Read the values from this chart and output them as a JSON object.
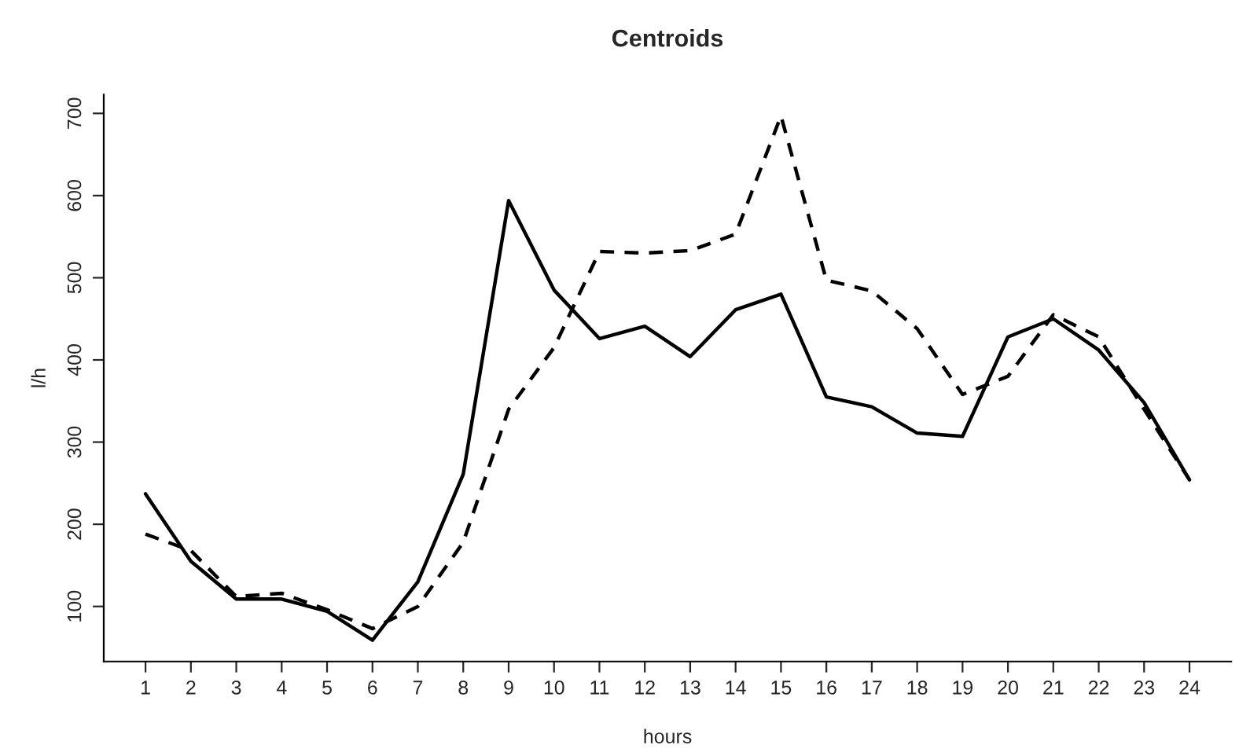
{
  "chart_data": {
    "type": "line",
    "title": "Centroids",
    "xlabel": "hours",
    "ylabel": "l/h",
    "x": [
      1,
      2,
      3,
      4,
      5,
      6,
      7,
      8,
      9,
      10,
      11,
      12,
      13,
      14,
      15,
      16,
      17,
      18,
      19,
      20,
      21,
      22,
      23,
      24
    ],
    "series": [
      {
        "color": "#000000",
        "line_style": "solid",
        "values": [
          237,
          155,
          109,
          109,
          94,
          59,
          130,
          261,
          594,
          485,
          426,
          441,
          404,
          461,
          480,
          355,
          343,
          311,
          307,
          428,
          450,
          412,
          348,
          254
        ]
      },
      {
        "color": "#000000",
        "line_style": "dashed",
        "values": [
          188,
          168,
          112,
          116,
          96,
          73,
          100,
          178,
          340,
          415,
          532,
          530,
          533,
          553,
          697,
          497,
          484,
          438,
          358,
          380,
          455,
          428,
          340,
          254
        ]
      }
    ],
    "xlim": [
      0.08,
      24.92
    ],
    "ylim": [
      33,
      723
    ],
    "xticks": [
      1,
      2,
      3,
      4,
      5,
      6,
      7,
      8,
      9,
      10,
      11,
      12,
      13,
      14,
      15,
      16,
      17,
      18,
      19,
      20,
      21,
      22,
      23,
      24
    ],
    "yticks": [
      100,
      200,
      300,
      400,
      500,
      600,
      700
    ],
    "grid": false,
    "legend": false,
    "marker": "none"
  }
}
